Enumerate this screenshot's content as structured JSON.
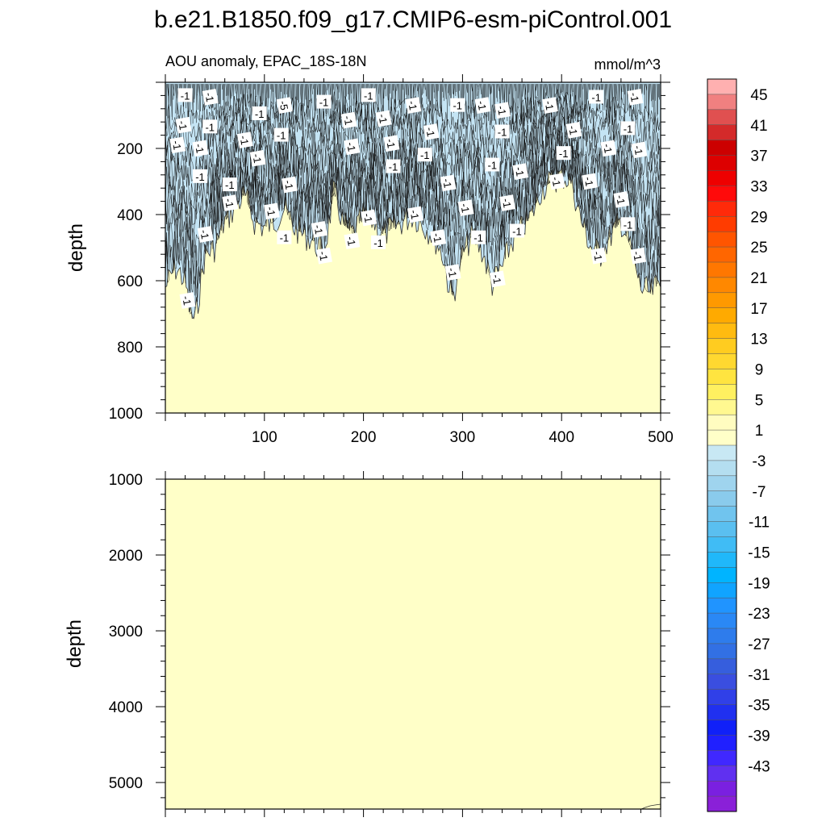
{
  "chart_data": {
    "title": "b.e21.B1850.f09_g17.CMIP6-esm-piControl.001",
    "subtitle_left": "AOU anomaly, EPAC_18S-18N",
    "subtitle_right": "mmol/m^3",
    "type": "heatmap",
    "x_ticks": [
      100,
      200,
      300,
      400,
      500
    ],
    "xlim": [
      0,
      500
    ],
    "panels": [
      {
        "ylabel": "depth",
        "ylim": [
          0,
          1000
        ],
        "y_ticks": [
          200,
          400,
          600,
          800,
          1000
        ],
        "background_level": "1",
        "negative_region_profile": {
          "description_level": "-3",
          "x": [
            0,
            10,
            20,
            25,
            30,
            40,
            50,
            60,
            70,
            80,
            90,
            100,
            110,
            120,
            130,
            140,
            150,
            160,
            170,
            180,
            190,
            200,
            210,
            220,
            230,
            240,
            250,
            260,
            270,
            280,
            285,
            290,
            300,
            310,
            320,
            330,
            340,
            350,
            360,
            370,
            380,
            390,
            400,
            410,
            420,
            430,
            440,
            450,
            460,
            470,
            480,
            490,
            500
          ],
          "depth": [
            620,
            560,
            600,
            700,
            720,
            520,
            500,
            420,
            380,
            340,
            420,
            440,
            420,
            380,
            440,
            460,
            480,
            520,
            330,
            430,
            460,
            400,
            420,
            460,
            440,
            420,
            400,
            430,
            460,
            520,
            600,
            650,
            520,
            460,
            510,
            610,
            560,
            480,
            440,
            400,
            320,
            300,
            280,
            300,
            420,
            500,
            520,
            460,
            420,
            500,
            620,
            640,
            600
          ]
        },
        "contour_labels": [
          {
            "text": "-1",
            "x": 20,
            "depth": 40
          },
          {
            "text": "-1",
            "x": 45,
            "depth": 45
          },
          {
            "text": "-1",
            "x": 18,
            "depth": 130
          },
          {
            "text": "-1",
            "x": 45,
            "depth": 135
          },
          {
            "text": "-1",
            "x": 12,
            "depth": 190
          },
          {
            "text": "-1",
            "x": 35,
            "depth": 200
          },
          {
            "text": "-1",
            "x": 35,
            "depth": 285
          },
          {
            "text": "-1",
            "x": 40,
            "depth": 460
          },
          {
            "text": "-1",
            "x": 22,
            "depth": 660
          },
          {
            "text": "-1",
            "x": 95,
            "depth": 95
          },
          {
            "text": "-1",
            "x": 80,
            "depth": 175
          },
          {
            "text": "-1",
            "x": 93,
            "depth": 230
          },
          {
            "text": "-1",
            "x": 65,
            "depth": 310
          },
          {
            "text": "-1",
            "x": 65,
            "depth": 365
          },
          {
            "text": "-5",
            "x": 120,
            "depth": 70
          },
          {
            "text": "-1",
            "x": 117,
            "depth": 160
          },
          {
            "text": "-1",
            "x": 125,
            "depth": 310
          },
          {
            "text": "-1",
            "x": 107,
            "depth": 390
          },
          {
            "text": "-1",
            "x": 120,
            "depth": 470
          },
          {
            "text": "-1",
            "x": 155,
            "depth": 445
          },
          {
            "text": "-1",
            "x": 160,
            "depth": 525
          },
          {
            "text": "-1",
            "x": 160,
            "depth": 60
          },
          {
            "text": "-1",
            "x": 185,
            "depth": 115
          },
          {
            "text": "-1",
            "x": 188,
            "depth": 195
          },
          {
            "text": "-1",
            "x": 205,
            "depth": 40
          },
          {
            "text": "-1",
            "x": 220,
            "depth": 110
          },
          {
            "text": "-1",
            "x": 228,
            "depth": 185
          },
          {
            "text": "-1",
            "x": 230,
            "depth": 255
          },
          {
            "text": "-1",
            "x": 205,
            "depth": 410
          },
          {
            "text": "-1",
            "x": 188,
            "depth": 480
          },
          {
            "text": "-1",
            "x": 215,
            "depth": 485
          },
          {
            "text": "-1",
            "x": 250,
            "depth": 70
          },
          {
            "text": "-1",
            "x": 268,
            "depth": 150
          },
          {
            "text": "-1",
            "x": 262,
            "depth": 220
          },
          {
            "text": "-1",
            "x": 252,
            "depth": 400
          },
          {
            "text": "-1",
            "x": 275,
            "depth": 470
          },
          {
            "text": "-1",
            "x": 295,
            "depth": 70
          },
          {
            "text": "-1",
            "x": 320,
            "depth": 70
          },
          {
            "text": "-1",
            "x": 340,
            "depth": 85
          },
          {
            "text": "-1",
            "x": 340,
            "depth": 150
          },
          {
            "text": "-1",
            "x": 285,
            "depth": 305
          },
          {
            "text": "-1",
            "x": 303,
            "depth": 380
          },
          {
            "text": "-1",
            "x": 316,
            "depth": 470
          },
          {
            "text": "-1",
            "x": 290,
            "depth": 575
          },
          {
            "text": "-1",
            "x": 335,
            "depth": 595
          },
          {
            "text": "-1",
            "x": 330,
            "depth": 250
          },
          {
            "text": "-1",
            "x": 358,
            "depth": 270
          },
          {
            "text": "-1",
            "x": 345,
            "depth": 365
          },
          {
            "text": "-1",
            "x": 355,
            "depth": 450
          },
          {
            "text": "-1",
            "x": 388,
            "depth": 70
          },
          {
            "text": "-1",
            "x": 412,
            "depth": 145
          },
          {
            "text": "-1",
            "x": 402,
            "depth": 215
          },
          {
            "text": "-1",
            "x": 395,
            "depth": 300
          },
          {
            "text": "-1",
            "x": 428,
            "depth": 300
          },
          {
            "text": "-1",
            "x": 435,
            "depth": 45
          },
          {
            "text": "-1",
            "x": 460,
            "depth": 355
          },
          {
            "text": "-1",
            "x": 447,
            "depth": 200
          },
          {
            "text": "-1",
            "x": 467,
            "depth": 140
          },
          {
            "text": "-1",
            "x": 474,
            "depth": 45
          },
          {
            "text": "-1",
            "x": 478,
            "depth": 205
          },
          {
            "text": "-1",
            "x": 467,
            "depth": 430
          },
          {
            "text": "-1",
            "x": 437,
            "depth": 525
          },
          {
            "text": "-1",
            "x": 477,
            "depth": 525
          }
        ]
      },
      {
        "ylabel": "depth",
        "ylim": [
          1000,
          5350
        ],
        "y_ticks": [
          1000,
          2000,
          3000,
          4000,
          5000
        ],
        "background_level": "1"
      }
    ],
    "colorbar": {
      "labels": [
        "45",
        "41",
        "37",
        "33",
        "29",
        "25",
        "21",
        "17",
        "13",
        "9",
        "5",
        "1",
        "-3",
        "-7",
        "-11",
        "-15",
        "-19",
        "-23",
        "-27",
        "-31",
        "-35",
        "-39",
        "-43"
      ],
      "colors": [
        "#ffb0b0",
        "#f08080",
        "#e05050",
        "#d42a2a",
        "#cc0000",
        "#dd0000",
        "#ee0000",
        "#ff0a0a",
        "#ff2a0a",
        "#ff3c00",
        "#ff5500",
        "#ff6600",
        "#ff7700",
        "#ff8800",
        "#ff9900",
        "#ffaa00",
        "#ffbb10",
        "#ffcc20",
        "#ffd830",
        "#ffe440",
        "#fff060",
        "#fff890",
        "#fffcc0",
        "#ffffc8",
        "#c8e8f4",
        "#b4def0",
        "#9fd4ee",
        "#8acbec",
        "#70c4ee",
        "#5abff0",
        "#40bcf5",
        "#20b8fa",
        "#00b4ff",
        "#10a4ff",
        "#2094ff",
        "#2a88f5",
        "#2e7cec",
        "#3270e4",
        "#365edd",
        "#3a4ee0",
        "#3040e8",
        "#2030f0",
        "#1020f8",
        "#2020ff",
        "#4028ff",
        "#6030f0",
        "#7a20e0",
        "#8a20d8"
      ]
    }
  }
}
